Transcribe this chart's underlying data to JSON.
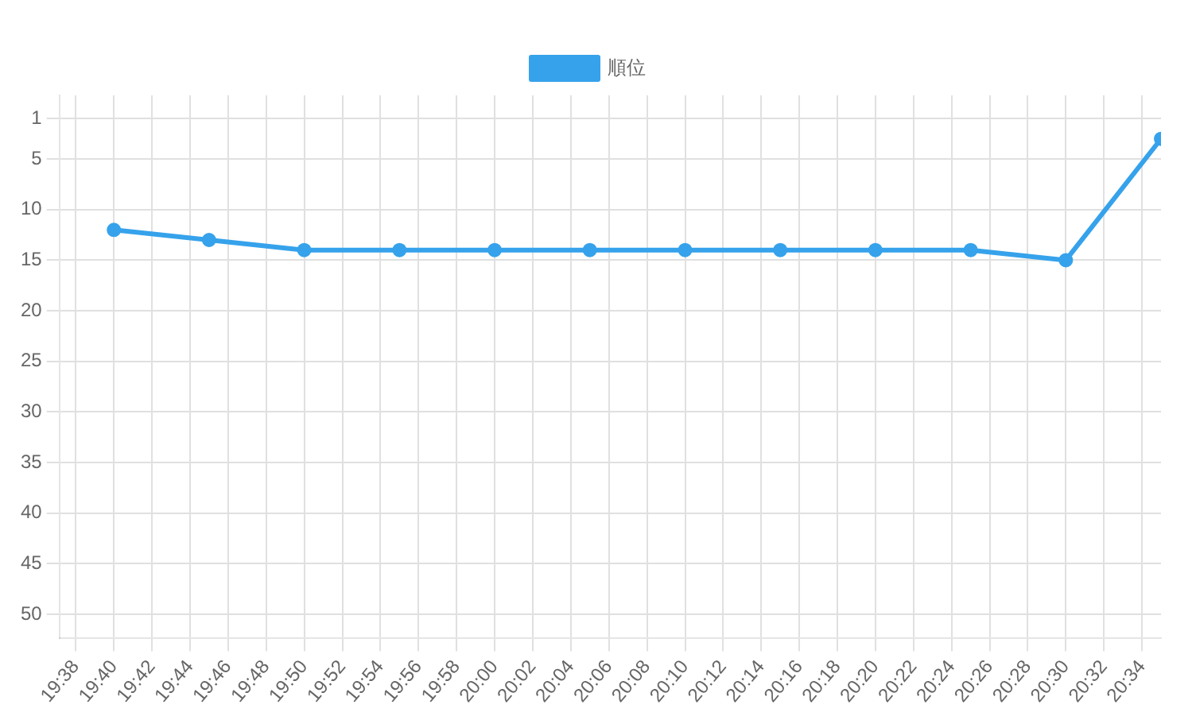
{
  "chart_data": {
    "type": "line",
    "legend": "top",
    "grid": true,
    "marker": "circle",
    "line_style": "solid",
    "xlim": [
      19.619,
      20.5833
    ],
    "ylim": [
      52.4,
      -1.3
    ],
    "yticks": [
      1,
      5,
      10,
      15,
      20,
      25,
      30,
      35,
      40,
      45,
      50
    ],
    "xticks": [
      {
        "value": 19.6333,
        "label": "19:38"
      },
      {
        "value": 19.6667,
        "label": "19:40"
      },
      {
        "value": 19.7,
        "label": "19:42"
      },
      {
        "value": 19.7333,
        "label": "19:44"
      },
      {
        "value": 19.7667,
        "label": "19:46"
      },
      {
        "value": 19.8,
        "label": "19:48"
      },
      {
        "value": 19.8333,
        "label": "19:50"
      },
      {
        "value": 19.8667,
        "label": "19:52"
      },
      {
        "value": 19.9,
        "label": "19:54"
      },
      {
        "value": 19.9333,
        "label": "19:56"
      },
      {
        "value": 19.9667,
        "label": "19:58"
      },
      {
        "value": 20,
        "label": "20:00"
      },
      {
        "value": 20.0333,
        "label": "20:02"
      },
      {
        "value": 20.0667,
        "label": "20:04"
      },
      {
        "value": 20.1,
        "label": "20:06"
      },
      {
        "value": 20.1333,
        "label": "20:08"
      },
      {
        "value": 20.1667,
        "label": "20:10"
      },
      {
        "value": 20.2,
        "label": "20:12"
      },
      {
        "value": 20.2333,
        "label": "20:14"
      },
      {
        "value": 20.2667,
        "label": "20:16"
      },
      {
        "value": 20.3,
        "label": "20:18"
      },
      {
        "value": 20.3333,
        "label": "20:20"
      },
      {
        "value": 20.3667,
        "label": "20:22"
      },
      {
        "value": 20.4,
        "label": "20:24"
      },
      {
        "value": 20.4333,
        "label": "20:26"
      },
      {
        "value": 20.4667,
        "label": "20:28"
      },
      {
        "value": 20.5,
        "label": "20:30"
      },
      {
        "value": 20.5333,
        "label": "20:32"
      },
      {
        "value": 20.5667,
        "label": "20:34"
      }
    ],
    "x": [
      19.6667,
      19.75,
      19.8333,
      19.9167,
      20,
      20.0833,
      20.1667,
      20.25,
      20.3333,
      20.4167,
      20.5,
      20.5833
    ],
    "series": [
      {
        "name": "順位",
        "color": "#36a2eb",
        "values": [
          12,
          13,
          14,
          14,
          14,
          14,
          14,
          14,
          14,
          14,
          15,
          3
        ]
      }
    ]
  }
}
